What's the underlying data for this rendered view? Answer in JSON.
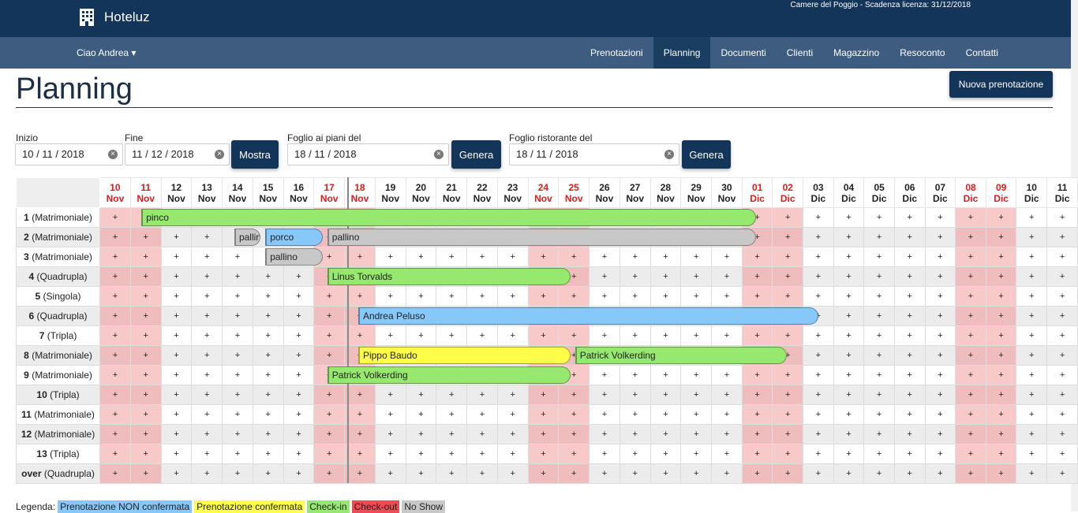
{
  "app": {
    "title": "Hoteluz",
    "license": "Camere del Poggio - Scadenza licenza: 31/12/2018",
    "user_menu": "Ciao Andrea ▾"
  },
  "nav": [
    "Prenotazioni",
    "Planning",
    "Documenti",
    "Clienti",
    "Magazzino",
    "Resoconto",
    "Contatti"
  ],
  "nav_active": 1,
  "page": {
    "title": "Planning",
    "new_button": "Nuova prenotazione"
  },
  "filters": {
    "start_label": "Inizio",
    "start_value": "10 / 11 / 2018",
    "end_label": "Fine",
    "end_value": "11 / 12 / 2018",
    "show_button": "Mostra",
    "floors_label": "Foglio ai piani del",
    "floors_value": "18 / 11 / 2018",
    "floors_button": "Genera",
    "restaurant_label": "Foglio ristorante del",
    "restaurant_value": "18 / 11 / 2018",
    "restaurant_button": "Genera"
  },
  "days": [
    {
      "d": "10",
      "m": "Nov",
      "we": true
    },
    {
      "d": "11",
      "m": "Nov",
      "we": true
    },
    {
      "d": "12",
      "m": "Nov",
      "we": false
    },
    {
      "d": "13",
      "m": "Nov",
      "we": false
    },
    {
      "d": "14",
      "m": "Nov",
      "we": false
    },
    {
      "d": "15",
      "m": "Nov",
      "we": false
    },
    {
      "d": "16",
      "m": "Nov",
      "we": false
    },
    {
      "d": "17",
      "m": "Nov",
      "we": true
    },
    {
      "d": "18",
      "m": "Nov",
      "we": true
    },
    {
      "d": "19",
      "m": "Nov",
      "we": false
    },
    {
      "d": "20",
      "m": "Nov",
      "we": false
    },
    {
      "d": "21",
      "m": "Nov",
      "we": false
    },
    {
      "d": "22",
      "m": "Nov",
      "we": false
    },
    {
      "d": "23",
      "m": "Nov",
      "we": false
    },
    {
      "d": "24",
      "m": "Nov",
      "we": true
    },
    {
      "d": "25",
      "m": "Nov",
      "we": true
    },
    {
      "d": "26",
      "m": "Nov",
      "we": false
    },
    {
      "d": "27",
      "m": "Nov",
      "we": false
    },
    {
      "d": "28",
      "m": "Nov",
      "we": false
    },
    {
      "d": "29",
      "m": "Nov",
      "we": false
    },
    {
      "d": "30",
      "m": "Nov",
      "we": false
    },
    {
      "d": "01",
      "m": "Dic",
      "we": true
    },
    {
      "d": "02",
      "m": "Dic",
      "we": true
    },
    {
      "d": "03",
      "m": "Dic",
      "we": false
    },
    {
      "d": "04",
      "m": "Dic",
      "we": false
    },
    {
      "d": "05",
      "m": "Dic",
      "we": false
    },
    {
      "d": "06",
      "m": "Dic",
      "we": false
    },
    {
      "d": "07",
      "m": "Dic",
      "we": false
    },
    {
      "d": "08",
      "m": "Dic",
      "we": true
    },
    {
      "d": "09",
      "m": "Dic",
      "we": true
    },
    {
      "d": "10",
      "m": "Dic",
      "we": false
    },
    {
      "d": "11",
      "m": "Dic",
      "we": false
    }
  ],
  "cell_symbol": "+",
  "rooms": [
    {
      "num": "1",
      "type": "(Matrimoniale)"
    },
    {
      "num": "2",
      "type": "(Matrimoniale)"
    },
    {
      "num": "3",
      "type": "(Matrimoniale)"
    },
    {
      "num": "4",
      "type": "(Quadrupla)"
    },
    {
      "num": "5",
      "type": "(Singola)"
    },
    {
      "num": "6",
      "type": "(Quadrupla)"
    },
    {
      "num": "7",
      "type": "(Tripla)"
    },
    {
      "num": "8",
      "type": "(Matrimoniale)"
    },
    {
      "num": "9",
      "type": "(Matrimoniale)"
    },
    {
      "num": "10",
      "type": "(Tripla)"
    },
    {
      "num": "11",
      "type": "(Matrimoniale)"
    },
    {
      "num": "12",
      "type": "(Matrimoniale)"
    },
    {
      "num": "13",
      "type": "(Tripla)"
    },
    {
      "num": "over",
      "type": "(Quadrupla)"
    }
  ],
  "today_index": 8,
  "bookings": [
    {
      "room": 0,
      "start": 1,
      "end": 20,
      "name": "pinco",
      "status": "checkin"
    },
    {
      "room": 1,
      "start": 4,
      "end": 4,
      "name": "pallino",
      "status": "noshow"
    },
    {
      "room": 1,
      "start": 5,
      "end": 6,
      "name": "porco",
      "status": "unconfirmed"
    },
    {
      "room": 1,
      "start": 7,
      "end": 20,
      "name": "pallino",
      "status": "noshow"
    },
    {
      "room": 2,
      "start": 5,
      "end": 6,
      "name": "pallino",
      "status": "noshow"
    },
    {
      "room": 3,
      "start": 7,
      "end": 14,
      "name": "Linus Torvalds",
      "status": "checkin"
    },
    {
      "room": 5,
      "start": 8,
      "end": 22,
      "name": "Andrea Peluso",
      "status": "unconfirmed"
    },
    {
      "room": 7,
      "start": 8,
      "end": 14,
      "name": "Pippo Baudo",
      "status": "confirmed"
    },
    {
      "room": 7,
      "start": 15,
      "end": 21,
      "name": "Patrick Volkerding",
      "status": "checkin"
    },
    {
      "room": 8,
      "start": 7,
      "end": 14,
      "name": "Patrick Volkerding",
      "status": "checkin"
    }
  ],
  "status_colors": {
    "unconfirmed": "#87c8fa",
    "confirmed": "#fefe4a",
    "checkin": "#96e86f",
    "checkout": "#ef4b55",
    "noshow": "#c8c8c8"
  },
  "legend": {
    "label": "Legenda:",
    "items": [
      {
        "key": "unconfirmed",
        "text": "Prenotazione NON confermata"
      },
      {
        "key": "confirmed",
        "text": "Prenotazione confermata"
      },
      {
        "key": "checkin",
        "text": "Check-in"
      },
      {
        "key": "checkout",
        "text": "Check-out"
      },
      {
        "key": "noshow",
        "text": "No Show"
      }
    ]
  }
}
